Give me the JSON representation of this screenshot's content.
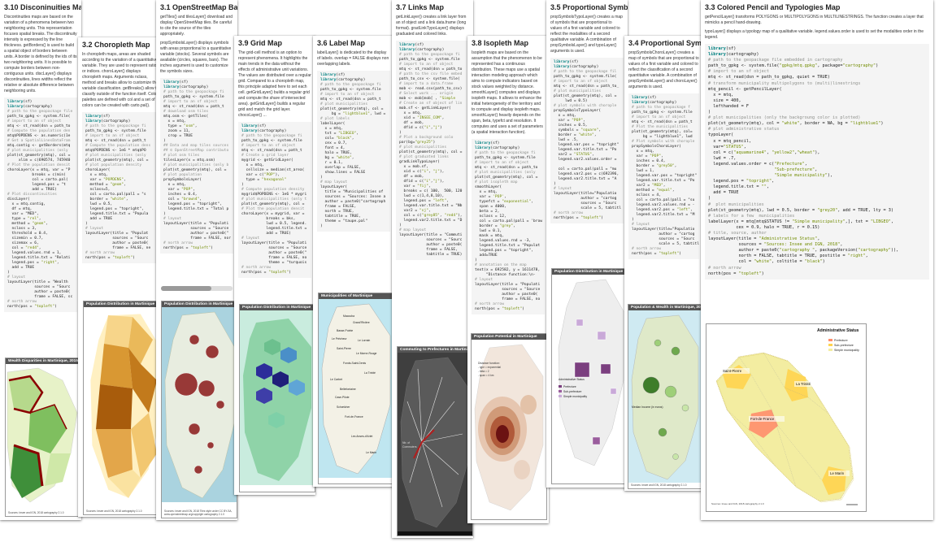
{
  "cards": {
    "disc": {
      "title": "3.10 Disconinuities Map",
      "text": "Discontinuities maps are based on the variation of a phenomena between two neighboring units. This representation focuses spatial breaks. The discontinuity intensity is expressed by the line thickness. getBorders() is used to build a spatial object of borders between units. A border is defined by the ids of its two neighboring units. It is possible to compute borders between non-contiguous units. discLayer() displays discontinuities, lines widths reflect the relative or absolute difference between neighboring units.",
      "map_title": "Wealth Disparities in Martinique, 2015",
      "source": "Sources: Insee and IGN, 2018\ncartography 2.1.0"
    },
    "choro": {
      "title": "3.2 Choropleth Map",
      "text": "In choropleth maps, areas are shaded according to the variation of a quantitative variable. They are used to represent ratios or indices. choroLayer() displays choropleth maps. Arguments nclass, method and breaks allow to customize the variable classification. getBreaks() allow to classify outside of the function itself. Colors palettes are defined with col and a set of colors can be created with carto.pal().",
      "map_title": "Population Distribution in Martinique",
      "source": "Sources: Insee and IGN, 2018\ncartography 2.1.0"
    },
    "osm": {
      "title": "3.1 OpenStreetMap Basemap and Proportional Symbols",
      "text1": "getTiles() and tilesLayer() download and display OpenStreetMap tiles. Be careful to cite the source of the tiles appropriately.",
      "text2": "propSymbolsLayer() displays symbols with areas proportional to a quantitative variable (stocks). Several symbols are available (circles, squares, bars). The inches argument is used to customize the symbols sizes.",
      "map_title": "Population Distribution in Martinique",
      "source": "Sources: Insee and IGN, 2018\nTiles style under CC BY-SA, www.openstreetmap.org/copyright\ncartography 2.1.0"
    },
    "grid": {
      "title": "3.9 Grid Map",
      "text": "The grid-cell method is an option to represent phenomena. It highlights the main trends in the data without the effects of administrative unit variations. The values are distributed over a regular grid. Compared to a choropleth map, this principle adapted here to set each cell. getGridLayer() builds a regular grid and compute the share of intersected area). getGridLayer() builds a regular grid and match the grid layer. chocoLayer() ...",
      "map_title": "Population Distribution in Martinique"
    },
    "label": {
      "title": "3.6 Label Map",
      "text": "labelLayer() is dedicated to the display of labels. overlap = FALSE displays non overlapping labels.",
      "map_title": "Municipalities of Martinique"
    },
    "links": {
      "title": "3.7 Links Map",
      "text": "getLinkLayer() creates a link layer from an sf object and a link data.frame (long format). gradLinkTypoLayer() displays graduated and colored links.",
      "map_title": "Commuting to Prefectures in Martinique"
    },
    "iso": {
      "title": "3.8 Isopleth Map",
      "text": "Isopleth maps are based on the assumption that the phenomenon to be represented has a continuous distribution. These maps use a spatial interaction modeling approach which aims to compute indicators based on stock values weighted by distance. smoothLayer() computes and displays isopleth maps. It allows to enhance the initial heterogeneity of the territory and to compute and display isopleth maps. smoothLayer() heavily depends on the span, beta, typefct and resolution. It computes and uses a set of parameters (a spatial interaction function).",
      "map_title": "Population Potential in Martinique",
      "legend": "Distance function:\n- type = exponential\n- beta = 2\n- span = 4 km"
    },
    "typo": {
      "title": "3.5 Proportional Symbols and Typology Map",
      "text": "propSymbolsTypoLayer() creates a map of symbols that are proportional to values of a first variable and colored to reflect the modalities of a second qualitative variable. A combination of propSymbolsLayer() and typoLayer() arguments is used.",
      "map_title": "Population Distribution in Martinique",
      "legend_title": "Administrative Status",
      "legend_items": [
        "Prefecture",
        "Sub-prefecture",
        "Simple municipality"
      ],
      "source": "Sources: Insee and IGN, 2018\ncartography 2.1.0"
    },
    "propchoro": {
      "title": "3.4 Proportional Symbols and Choropleth Map",
      "text": "propSymbolsChoroLayer() creates a map of symbols that are proportional to values of a first variable and colored to reflect the classification of a second quantitative variable. A combination of propSymbolsLayer() and choroLayer() arguments is used.",
      "map_title": "Population & Wealth in Martinique, 2015",
      "legend_title": "Median Income (in euros)",
      "source": "Sources: Insee and IGN, 2018\ncartography 2.1.0"
    },
    "pencil": {
      "title": "3.3 Colored Pencil and Typologies Map",
      "text1": "getPencilLayer() transforms POLYGONS or MULTIPOLYGONS in MULTILINESTRINGS. The function creates a layer that mimicks a pencil hand-drawing.",
      "text2": "typoLayer() displays a typology map of a qualitative variable. legend.values.order is used to set the modalities order in the legend.",
      "map_title": "Administrative Status",
      "legend_items": [
        "Prefecture",
        "Sub-prefecture",
        "Simple municipality"
      ],
      "labels": [
        "Saint-Pierre",
        "La Trinité",
        "Fort-de-France",
        "Le Marin"
      ],
      "source": "Sources: Insee and IGN, 2018\ncartography 2.1.0"
    }
  },
  "colors": {
    "pencil_fill": "#f3eda1",
    "pencil_prefecture": "#ff8d6b",
    "pencil_sub": "#ffd34e",
    "choro_dark": "#a85c0c",
    "choro_light": "#fff0c2",
    "grid_blue": "#2c2c9a",
    "grid_green": "#8fd3a8",
    "typo_purple": "#7b3f7f",
    "iso_red": "#6b1212"
  }
}
